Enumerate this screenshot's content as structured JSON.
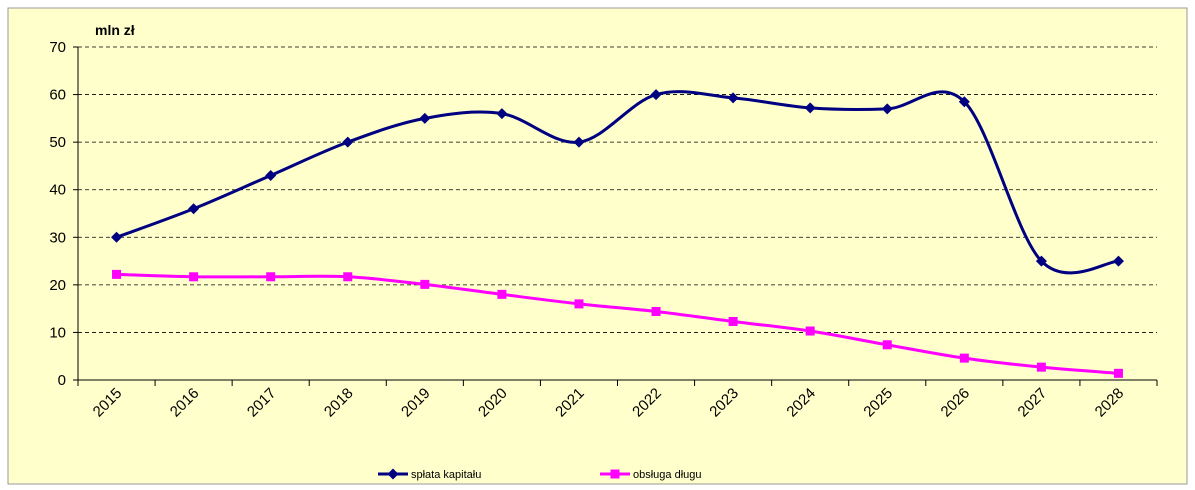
{
  "chart_data": {
    "type": "line",
    "y_label": "mln zł",
    "categories": [
      "2015",
      "2016",
      "2017",
      "2018",
      "2019",
      "2020",
      "2021",
      "2022",
      "2023",
      "2024",
      "2025",
      "2026",
      "2027",
      "2028"
    ],
    "series": [
      {
        "name": "spłata kapitału",
        "color": "#000080",
        "marker": "diamond",
        "values": [
          30,
          36,
          43,
          50,
          55,
          56,
          50,
          60,
          59.3,
          57.2,
          57,
          58.5,
          25,
          25
        ]
      },
      {
        "name": "obsługa długu",
        "color": "#ff00ff",
        "marker": "square",
        "values": [
          22.2,
          21.7,
          21.7,
          21.7,
          20.1,
          18,
          16,
          14.4,
          12.3,
          10.3,
          7.4,
          4.6,
          2.7,
          1.4
        ]
      }
    ],
    "ylim": [
      0,
      70
    ],
    "yticks": [
      0,
      10,
      20,
      30,
      40,
      50,
      60,
      70
    ],
    "grid": true,
    "smooth": true,
    "legend": "bottom"
  }
}
